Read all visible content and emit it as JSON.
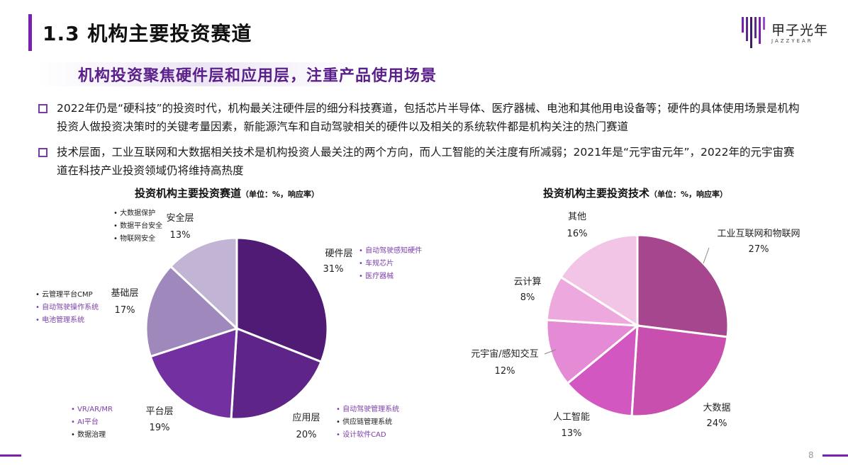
{
  "page_title": "1.3 机构主要投资赛道",
  "logo": {
    "name": "甲子光年",
    "sub": "JAZZYEAR"
  },
  "subtitle": "机构投资聚焦硬件层和应用层，注重产品使用场景",
  "bullets": [
    "2022年仍是“硬科技”的投资时代，机构最关注硬件层的细分科技赛道，包括芯片半导体、医疗器械、电池和其他用电设备等；硬件的具体使用场景是机构投资人做投资决策时的关键考量因素，新能源汽车和自动驾驶相关的硬件以及相关的系统软件都是机构关注的热门赛道",
    "技术层面，工业互联网和大数据相关技术是机构投资人最关注的两个方向，而人工智能的关注度有所减弱；2021年是“元宇宙元年”，2022年的元宇宙赛道在科技产业投资领域仍将维持高热度"
  ],
  "page_number": "8",
  "colors": {
    "accent": "#7a1fb0",
    "purple_text": "#7b3fa8"
  },
  "chart_data": [
    {
      "type": "pie",
      "title": "投资机构主要投资赛道",
      "unit_note": "（单位：%，响应率）",
      "slices": [
        {
          "name": "硬件层",
          "value": 31,
          "label": "31%",
          "color": "#4f1b74",
          "examples": [
            "自动驾驶感知硬件",
            "车规芯片",
            "医疗器械"
          ],
          "example_colors": [
            "#7b3fa8",
            "#7b3fa8",
            "#7b3fa8"
          ]
        },
        {
          "name": "应用层",
          "value": 20,
          "label": "20%",
          "color": "#5f2488",
          "examples": [
            "自动驾驶管理系统",
            "供应链管理系统",
            "设计软件CAD"
          ],
          "example_colors": [
            "#7b3fa8",
            "#222222",
            "#7b3fa8"
          ]
        },
        {
          "name": "平台层",
          "value": 19,
          "label": "19%",
          "color": "#7230a0",
          "examples": [
            "VR/AR/MR",
            "AI平台",
            "数据治理"
          ],
          "example_colors": [
            "#7b3fa8",
            "#7b3fa8",
            "#222222"
          ]
        },
        {
          "name": "基础层",
          "value": 17,
          "label": "17%",
          "color": "#9f88bb",
          "examples": [
            "云管理平台CMP",
            "自动驾驶操作系统",
            "电池管理系统"
          ],
          "example_colors": [
            "#222222",
            "#7b3fa8",
            "#7b3fa8"
          ]
        },
        {
          "name": "安全层",
          "value": 13,
          "label": "13%",
          "color": "#c2b4d4",
          "examples": [
            "大数据保护",
            "数据平台安全",
            "物联网安全"
          ],
          "example_colors": [
            "#222222",
            "#222222",
            "#222222"
          ]
        }
      ]
    },
    {
      "type": "pie",
      "title": "投资机构主要投资技术",
      "unit_note": "（单位：%，响应率）",
      "slices": [
        {
          "name": "工业互联网和物联网",
          "value": 27,
          "label": "27%",
          "color": "#a6468f"
        },
        {
          "name": "大数据",
          "value": 24,
          "label": "24%",
          "color": "#c84fad"
        },
        {
          "name": "人工智能",
          "value": 13,
          "label": "13%",
          "color": "#d257c1"
        },
        {
          "name": "元宇宙/感知交互",
          "value": 12,
          "label": "12%",
          "color": "#e58ad4"
        },
        {
          "name": "云计算",
          "value": 8,
          "label": "8%",
          "color": "#eda9de"
        },
        {
          "name": "其他",
          "value": 16,
          "label": "16%",
          "color": "#f2c4e6"
        }
      ]
    }
  ]
}
